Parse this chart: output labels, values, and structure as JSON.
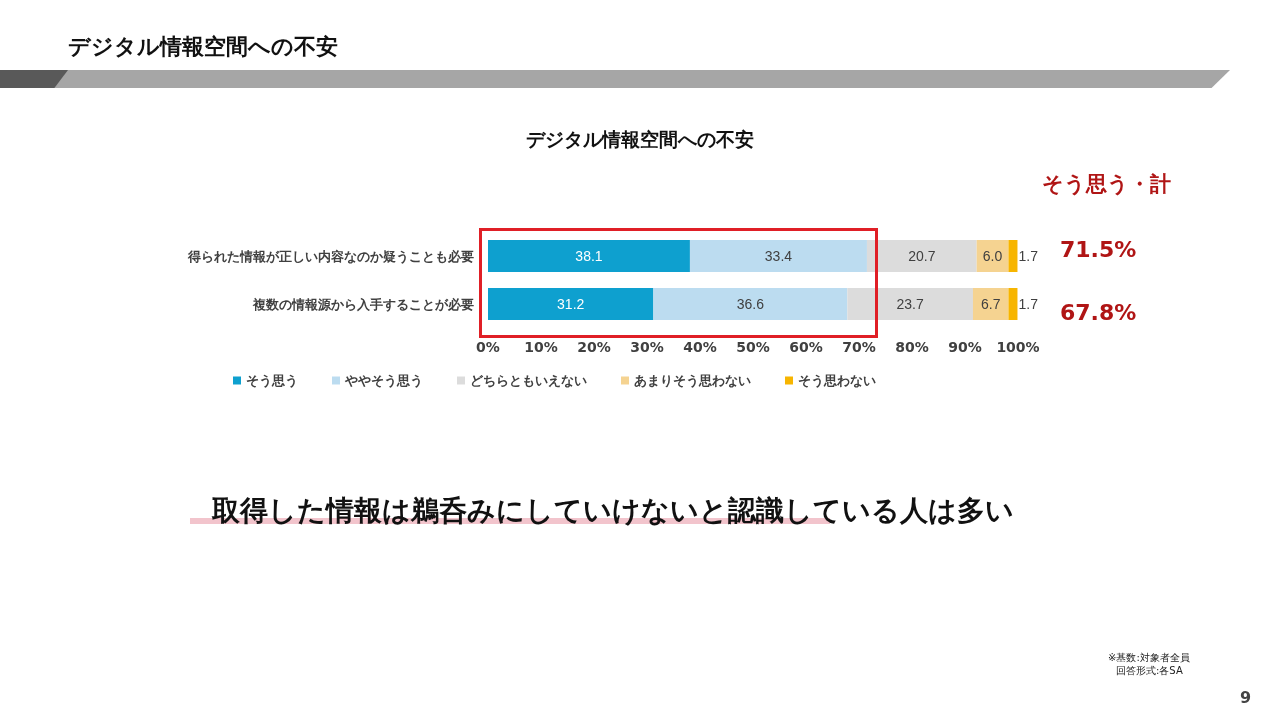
{
  "chart_data": {
    "type": "bar",
    "orientation": "horizontal",
    "stacked": true,
    "title": "デジタル情報空間への不安",
    "categories": [
      "得られた情報が正しい内容なのか疑うことも必要",
      "複数の情報源から入手することが必要"
    ],
    "series": [
      {
        "name": "そう思う",
        "color": "#0ea0cf",
        "values": [
          38.1,
          31.2
        ],
        "value_labels": [
          "38.1",
          "31.2"
        ]
      },
      {
        "name": "ややそう思う",
        "color": "#bcdcf0",
        "values": [
          33.4,
          36.6
        ],
        "value_labels": [
          "33.4",
          "36.6"
        ]
      },
      {
        "name": "どちらともいえない",
        "color": "#dcdcdc",
        "values": [
          20.7,
          23.7
        ],
        "value_labels": [
          "20.7",
          "23.7"
        ]
      },
      {
        "name": "あまりそう思わない",
        "color": "#f5d391",
        "values": [
          6.0,
          6.7
        ],
        "value_labels": [
          "6.0",
          "6.7"
        ]
      },
      {
        "name": "そう思わない",
        "color": "#f7b500",
        "values": [
          1.7,
          1.7
        ],
        "value_labels": [
          "1.7",
          "1.7"
        ]
      }
    ],
    "xlim": [
      0,
      100
    ],
    "xticks": [
      {
        "value": 0,
        "label": "0%"
      },
      {
        "value": 10,
        "label": "10%"
      },
      {
        "value": 20,
        "label": "20%"
      },
      {
        "value": 30,
        "label": "30%"
      },
      {
        "value": 40,
        "label": "40%"
      },
      {
        "value": 50,
        "label": "50%"
      },
      {
        "value": 60,
        "label": "60%"
      },
      {
        "value": 70,
        "label": "70%"
      },
      {
        "value": 80,
        "label": "80%"
      },
      {
        "value": 90,
        "label": "90%"
      },
      {
        "value": 100,
        "label": "100%"
      }
    ],
    "legend": "bottom",
    "annotations": [
      "デジタル情報空間への不安",
      "そう思う・計",
      "71.5%",
      "67.8%",
      "取得した情報は鵜呑みにしていけないと認識している人は多い",
      "※基数:対象者全員",
      "回答形式:各SA",
      "9"
    ]
  }
}
